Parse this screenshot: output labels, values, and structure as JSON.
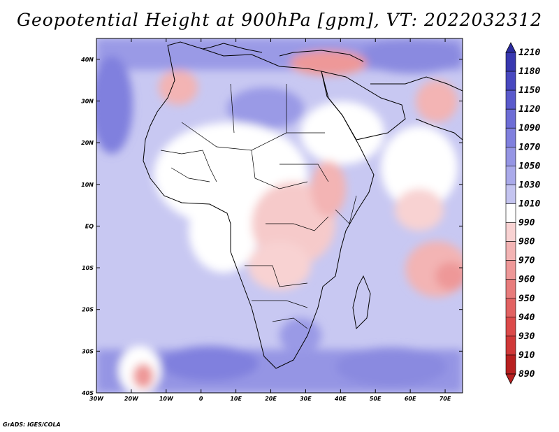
{
  "title": "Geopotential Height at 900hPa [gpm], VT: 2022032312",
  "footer": "GrADS: IGES/COLA",
  "map": {
    "lat_ticks": [
      "40N",
      "30N",
      "20N",
      "10N",
      "EQ",
      "10S",
      "20S",
      "30S",
      "40S"
    ],
    "lon_ticks": [
      "30W",
      "20W",
      "10W",
      "0",
      "10E",
      "20E",
      "30E",
      "40E",
      "50E",
      "60E",
      "70E"
    ],
    "lon_range": [
      -30,
      75
    ],
    "lat_range": [
      -40,
      45
    ]
  },
  "colorbar": {
    "levels": [
      "1210",
      "1180",
      "1150",
      "1120",
      "1090",
      "1070",
      "1050",
      "1030",
      "1010",
      "990",
      "980",
      "970",
      "960",
      "950",
      "940",
      "930",
      "910",
      "890"
    ],
    "colors": [
      "#2b2b9e",
      "#3838b0",
      "#4848c0",
      "#5a5acc",
      "#6d6dd6",
      "#8080de",
      "#9595e4",
      "#aaaaea",
      "#c4c4f0",
      "#ffffff",
      "#f8d2d2",
      "#f3b4b4",
      "#ee9898",
      "#e87c7c",
      "#e26262",
      "#dc4a4a",
      "#d03838",
      "#b82020"
    ]
  }
}
